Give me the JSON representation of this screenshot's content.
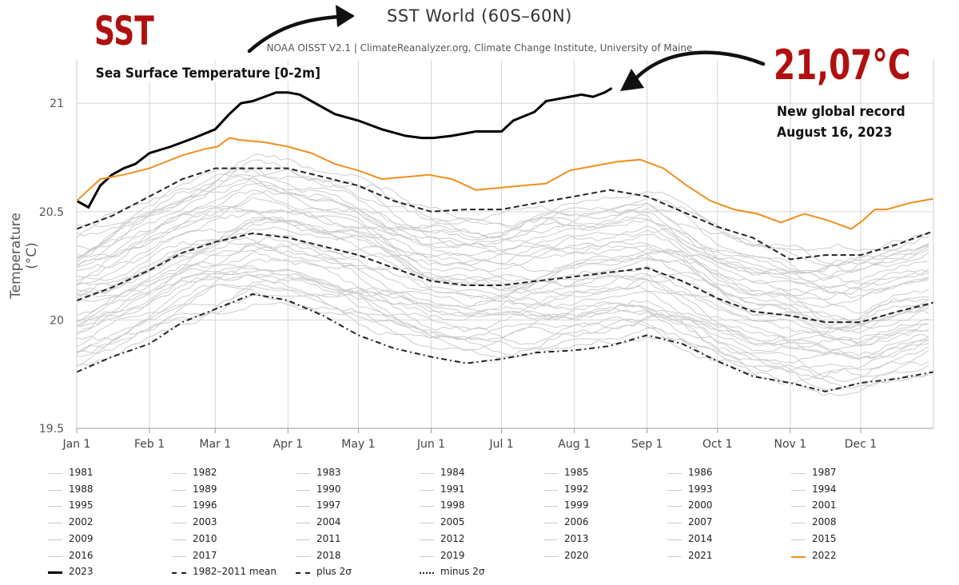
{
  "overlay": {
    "sst_label": "SST",
    "sst_description": "Sea Surface Temperature [0-2m]",
    "record_value": "21,07°C",
    "record_line1": "New global record",
    "record_line2": "August 16, 2023"
  },
  "chart_data": {
    "type": "line",
    "title": "SST World (60S–60N)",
    "subtitle": "NOAA OISST V2.1 | ClimateReanalyzer.org, Climate Change Institute, University of Maine",
    "ylabel": "Temperature (°C)",
    "xlabel": "",
    "ylim": [
      19.5,
      21.2
    ],
    "xlim": [
      0,
      365
    ],
    "y_ticks": [
      19.5,
      20,
      20.5,
      21
    ],
    "y_tick_labels": [
      "19.5",
      "20",
      "20.5",
      "21"
    ],
    "x_ticks": [
      0,
      31,
      59,
      90,
      120,
      151,
      181,
      212,
      243,
      273,
      304,
      334
    ],
    "x_tick_labels": [
      "Jan 1",
      "Feb 1",
      "Mar 1",
      "Apr 1",
      "May 1",
      "Jun 1",
      "Jul 1",
      "Aug 1",
      "Sep 1",
      "Oct 1",
      "Nov 1",
      "Dec 1"
    ],
    "grid": true,
    "colors": {
      "year2023": "#000000",
      "year2022": "#f28e1c",
      "other_years": "#cccccc",
      "mean": "#222222"
    },
    "series": [
      {
        "name": "2023",
        "style": "solid-bold",
        "x": [
          0,
          5,
          10,
          15,
          20,
          25,
          31,
          40,
          50,
          59,
          65,
          70,
          75,
          80,
          85,
          90,
          95,
          100,
          110,
          120,
          130,
          140,
          147,
          152,
          160,
          170,
          175,
          181,
          186,
          195,
          200,
          205,
          210,
          215,
          220,
          225,
          228
        ],
        "y": [
          20.55,
          20.52,
          20.62,
          20.67,
          20.7,
          20.72,
          20.77,
          20.8,
          20.84,
          20.88,
          20.95,
          21.0,
          21.01,
          21.03,
          21.05,
          21.05,
          21.04,
          21.01,
          20.95,
          20.92,
          20.88,
          20.85,
          20.84,
          20.84,
          20.85,
          20.87,
          20.87,
          20.87,
          20.92,
          20.96,
          21.01,
          21.02,
          21.03,
          21.04,
          21.03,
          21.05,
          21.07
        ]
      },
      {
        "name": "2022",
        "style": "solid-orange",
        "x": [
          0,
          10,
          20,
          31,
          45,
          55,
          60,
          65,
          70,
          80,
          90,
          100,
          110,
          120,
          130,
          140,
          150,
          160,
          170,
          180,
          190,
          200,
          210,
          220,
          230,
          240,
          250,
          260,
          270,
          280,
          290,
          300,
          310,
          320,
          330,
          335,
          340,
          345,
          355,
          365
        ],
        "y": [
          20.55,
          20.65,
          20.67,
          20.7,
          20.76,
          20.79,
          20.8,
          20.84,
          20.83,
          20.82,
          20.8,
          20.77,
          20.72,
          20.69,
          20.65,
          20.66,
          20.67,
          20.65,
          20.6,
          20.61,
          20.62,
          20.63,
          20.69,
          20.71,
          20.73,
          20.74,
          20.7,
          20.62,
          20.55,
          20.51,
          20.49,
          20.45,
          20.49,
          20.46,
          20.42,
          20.46,
          20.51,
          20.51,
          20.54,
          20.56
        ]
      },
      {
        "name": "1982–2011 mean",
        "style": "dashed",
        "x": [
          0,
          15,
          31,
          45,
          59,
          75,
          90,
          105,
          120,
          135,
          151,
          166,
          181,
          196,
          212,
          227,
          243,
          258,
          273,
          288,
          304,
          319,
          334,
          350,
          365
        ],
        "y": [
          20.09,
          20.15,
          20.23,
          20.31,
          20.36,
          20.4,
          20.38,
          20.34,
          20.3,
          20.24,
          20.18,
          20.16,
          20.16,
          20.18,
          20.2,
          20.22,
          20.24,
          20.18,
          20.1,
          20.04,
          20.02,
          19.99,
          19.99,
          20.04,
          20.08
        ]
      },
      {
        "name": "plus 2σ",
        "style": "dashed",
        "x": [
          0,
          15,
          31,
          45,
          59,
          75,
          90,
          105,
          120,
          135,
          151,
          166,
          181,
          196,
          212,
          227,
          243,
          258,
          273,
          288,
          304,
          319,
          334,
          350,
          365
        ],
        "y": [
          20.42,
          20.48,
          20.57,
          20.65,
          20.7,
          20.7,
          20.7,
          20.66,
          20.62,
          20.55,
          20.5,
          20.51,
          20.51,
          20.54,
          20.57,
          20.6,
          20.57,
          20.5,
          20.43,
          20.38,
          20.28,
          20.3,
          20.3,
          20.35,
          20.41
        ]
      },
      {
        "name": "minus 2σ",
        "style": "dashed",
        "x": [
          0,
          15,
          31,
          45,
          59,
          75,
          90,
          105,
          120,
          135,
          151,
          166,
          181,
          196,
          212,
          227,
          243,
          258,
          273,
          288,
          304,
          319,
          334,
          350,
          365
        ],
        "y": [
          19.76,
          19.83,
          19.89,
          19.99,
          20.05,
          20.12,
          20.09,
          20.02,
          19.93,
          19.87,
          19.83,
          19.8,
          19.82,
          19.85,
          19.86,
          19.88,
          19.93,
          19.89,
          19.81,
          19.74,
          19.71,
          19.67,
          19.71,
          19.73,
          19.76
        ]
      }
    ],
    "legend": {
      "items": [
        "1981",
        "1982",
        "1983",
        "1984",
        "1985",
        "1986",
        "1987",
        "1988",
        "1989",
        "1990",
        "1991",
        "1992",
        "1993",
        "1994",
        "1995",
        "1996",
        "1997",
        "1998",
        "1999",
        "2000",
        "2001",
        "2002",
        "2003",
        "2004",
        "2005",
        "2006",
        "2007",
        "2008",
        "2009",
        "2010",
        "2011",
        "2012",
        "2013",
        "2014",
        "2015",
        "2016",
        "2017",
        "2018",
        "2019",
        "2020",
        "2021",
        "2022",
        "2023",
        "1982–2011 mean",
        "plus 2σ",
        "minus 2σ"
      ]
    }
  }
}
